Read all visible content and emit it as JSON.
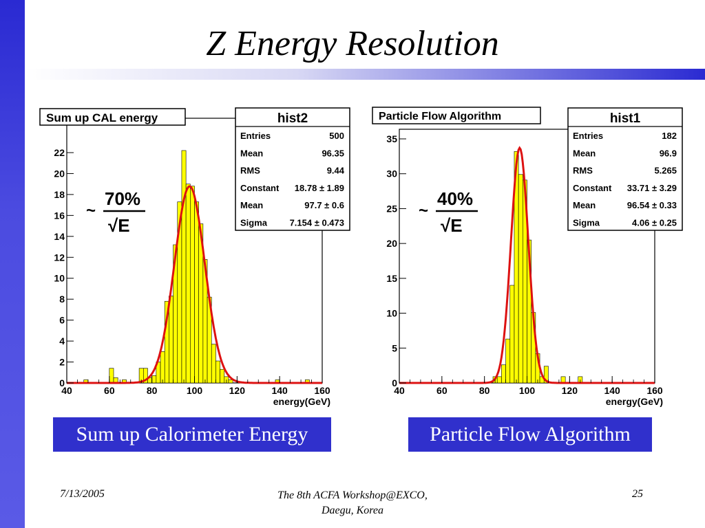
{
  "slide": {
    "title": "Z Energy Resolution",
    "date": "7/13/2005",
    "footer_line1": "The 8th ACFA Workshop@EXCO,",
    "footer_line2": "Daegu, Korea",
    "page_number": "25"
  },
  "captions": [
    "Sum up Calorimeter Energy",
    "Particle Flow Algorithm"
  ],
  "colors": {
    "side_bar": "#3333d6",
    "histogram_fill": "#ffff00",
    "fit_curve": "#dd1111",
    "caption_bg": "#3030cc"
  },
  "chart_data": [
    {
      "type": "bar",
      "title": "Sum up CAL energy",
      "xlabel": "energy(GeV)",
      "ylabel": "",
      "xlim": [
        40,
        160
      ],
      "ylim": [
        0,
        23
      ],
      "x_ticks": [
        40,
        60,
        80,
        100,
        120,
        140,
        160
      ],
      "y_ticks": [
        0,
        2,
        4,
        6,
        8,
        10,
        12,
        14,
        16,
        18,
        20,
        22
      ],
      "bin_width": 2,
      "bins": [
        {
          "x": 48,
          "y": 0.3
        },
        {
          "x": 60,
          "y": 1.4
        },
        {
          "x": 62,
          "y": 0.5
        },
        {
          "x": 66,
          "y": 0.3
        },
        {
          "x": 74,
          "y": 1.4
        },
        {
          "x": 76,
          "y": 1.4
        },
        {
          "x": 78,
          "y": 0.5
        },
        {
          "x": 80,
          "y": 0.7
        },
        {
          "x": 82,
          "y": 2.0
        },
        {
          "x": 84,
          "y": 3.0
        },
        {
          "x": 86,
          "y": 7.8
        },
        {
          "x": 88,
          "y": 8.3
        },
        {
          "x": 90,
          "y": 13.2
        },
        {
          "x": 92,
          "y": 17.3
        },
        {
          "x": 94,
          "y": 22.2
        },
        {
          "x": 96,
          "y": 19.0
        },
        {
          "x": 98,
          "y": 18.8
        },
        {
          "x": 100,
          "y": 17.3
        },
        {
          "x": 102,
          "y": 15.2
        },
        {
          "x": 104,
          "y": 11.8
        },
        {
          "x": 106,
          "y": 8.2
        },
        {
          "x": 108,
          "y": 3.7
        },
        {
          "x": 110,
          "y": 2.1
        },
        {
          "x": 112,
          "y": 1.3
        },
        {
          "x": 114,
          "y": 0.6
        },
        {
          "x": 116,
          "y": 0.3
        },
        {
          "x": 138,
          "y": 0.3
        },
        {
          "x": 152,
          "y": 0.3
        }
      ],
      "fit": {
        "constant": 18.78,
        "mean": 97.7,
        "sigma": 7.154
      },
      "resolution_label": {
        "tilde": "~",
        "numerator": "70%",
        "denominator": "√E"
      },
      "stats": {
        "name": "hist2",
        "rows": [
          {
            "label": "Entries",
            "value": "500"
          },
          {
            "label": "Mean",
            "value": "96.35"
          },
          {
            "label": "RMS",
            "value": "9.44"
          },
          {
            "label": "Constant",
            "value": "18.78 ± 1.89"
          },
          {
            "label": "Mean",
            "value": "97.7 ± 0.6"
          },
          {
            "label": "Sigma",
            "value": "7.154 ± 0.473"
          }
        ]
      }
    },
    {
      "type": "bar",
      "title": "Particle Flow Algorithm",
      "xlabel": "energy(GeV)",
      "ylabel": "",
      "xlim": [
        40,
        160
      ],
      "ylim": [
        0,
        35
      ],
      "x_ticks": [
        40,
        60,
        80,
        100,
        120,
        140,
        160
      ],
      "y_ticks": [
        0,
        5,
        10,
        15,
        20,
        25,
        30,
        35
      ],
      "bin_width": 2,
      "bins": [
        {
          "x": 84,
          "y": 0.9
        },
        {
          "x": 86,
          "y": 0.9
        },
        {
          "x": 88,
          "y": 2.6
        },
        {
          "x": 90,
          "y": 6.3
        },
        {
          "x": 92,
          "y": 14.0
        },
        {
          "x": 94,
          "y": 33.2
        },
        {
          "x": 96,
          "y": 29.9
        },
        {
          "x": 98,
          "y": 29.1
        },
        {
          "x": 100,
          "y": 20.5
        },
        {
          "x": 102,
          "y": 10.1
        },
        {
          "x": 104,
          "y": 4.2
        },
        {
          "x": 106,
          "y": 0.9
        },
        {
          "x": 108,
          "y": 2.4
        },
        {
          "x": 116,
          "y": 0.9
        },
        {
          "x": 124,
          "y": 0.9
        }
      ],
      "fit": {
        "constant": 33.71,
        "mean": 96.54,
        "sigma": 4.06
      },
      "resolution_label": {
        "tilde": "~",
        "numerator": "40%",
        "denominator": "√E"
      },
      "stats": {
        "name": "hist1",
        "rows": [
          {
            "label": "Entries",
            "value": "182"
          },
          {
            "label": "Mean",
            "value": "96.9"
          },
          {
            "label": "RMS",
            "value": "5.265"
          },
          {
            "label": "Constant",
            "value": "33.71 ± 3.29"
          },
          {
            "label": "Mean",
            "value": "96.54 ± 0.33"
          },
          {
            "label": "Sigma",
            "value": "4.06 ± 0.25"
          }
        ]
      }
    }
  ]
}
